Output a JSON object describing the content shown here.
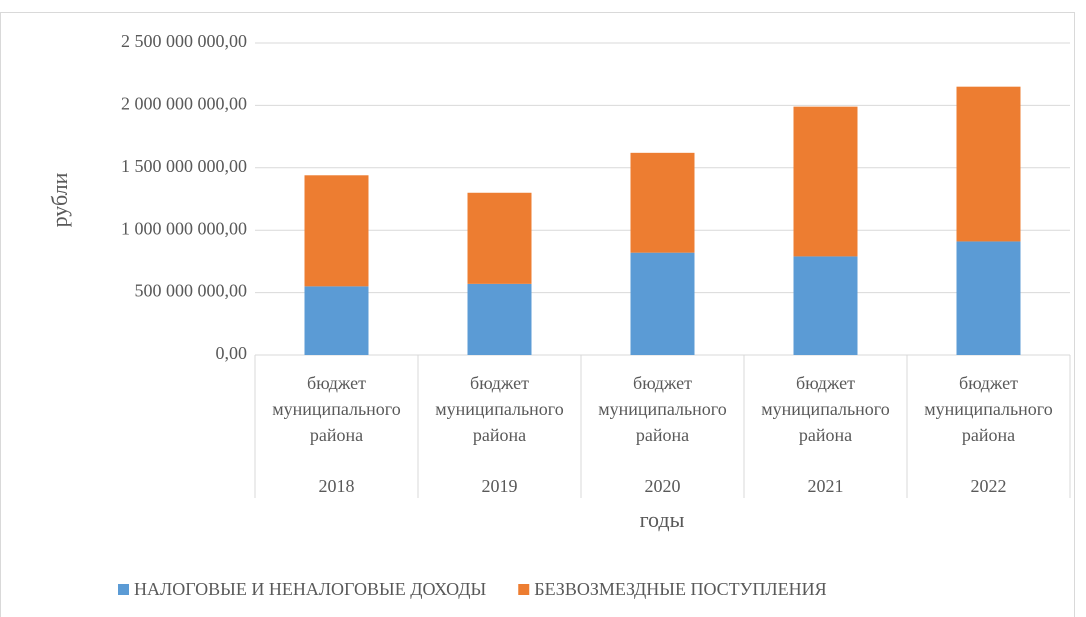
{
  "chart_data": {
    "type": "bar",
    "stacked": true,
    "y_label": "рубли",
    "x_label": "годы",
    "categories": [
      "2018",
      "2019",
      "2020",
      "2021",
      "2022"
    ],
    "category_groups": [
      "бюджет муниципального района",
      "бюджет муниципального района",
      "бюджет муниципального района",
      "бюджет муниципального района",
      "бюджет муниципального района"
    ],
    "series": [
      {
        "name": "НАЛОГОВЫЕ И НЕНАЛОГОВЫЕ ДОХОДЫ",
        "color": "#5b9bd5",
        "values": [
          550000000,
          570000000,
          820000000,
          790000000,
          910000000
        ]
      },
      {
        "name": "БЕЗВОЗМЕЗДНЫЕ ПОСТУПЛЕНИЯ",
        "color": "#ed7d31",
        "values": [
          890000000,
          730000000,
          800000000,
          1200000000,
          1240000000
        ]
      }
    ],
    "ylim": [
      0,
      2500000000
    ],
    "yticks": [
      {
        "value": 0,
        "label": "0,00"
      },
      {
        "value": 500000000,
        "label": "500 000 000,00"
      },
      {
        "value": 1000000000,
        "label": "1 000 000 000,00"
      },
      {
        "value": 1500000000,
        "label": "1 500 000 000,00"
      },
      {
        "value": 2000000000,
        "label": "2 000 000 000,00"
      },
      {
        "value": 2500000000,
        "label": "2 500 000 000,00"
      }
    ],
    "grid": true,
    "legend": "bottom"
  }
}
